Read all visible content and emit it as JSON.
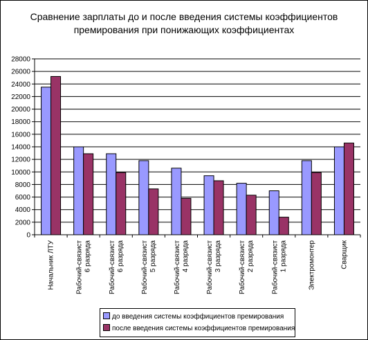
{
  "chart_data": {
    "type": "bar",
    "title_lines": [
      "Сравнение зарплаты до и после введения системы коэффициентов",
      "премирования при понижающих коэффициентах"
    ],
    "categories": [
      [
        "Начальник ЛТУ"
      ],
      [
        "Рабочий-связист",
        "6 разряда"
      ],
      [
        "Рабочий-связист",
        "6 разряда"
      ],
      [
        "Рабочий-связист",
        "5 разряда"
      ],
      [
        "Рабочий-связист",
        "4 разряда"
      ],
      [
        "Рабочий-связист",
        "3 разряда"
      ],
      [
        "Рабочий-связист",
        "2 разряда"
      ],
      [
        "Рабочий-связист",
        "1 разряда"
      ],
      [
        "Электромонтер"
      ],
      [
        "Сварщик"
      ]
    ],
    "series": [
      {
        "name": "до введения системы коэффициентов премирования",
        "color": "#9999ff",
        "values": [
          23500,
          14000,
          12900,
          11800,
          10600,
          9400,
          8200,
          7000,
          11800,
          14000
        ]
      },
      {
        "name": "после введения системы коэффициентов премирования",
        "color": "#993366",
        "values": [
          25200,
          12900,
          9900,
          7300,
          5800,
          8600,
          6300,
          2800,
          9900,
          14600
        ]
      }
    ],
    "ylim": [
      0,
      28000
    ],
    "yticks": [
      0,
      2000,
      4000,
      6000,
      8000,
      10000,
      12000,
      14000,
      16000,
      18000,
      20000,
      22000,
      24000,
      26000,
      28000
    ],
    "grid": true,
    "legend_position": "bottom"
  }
}
